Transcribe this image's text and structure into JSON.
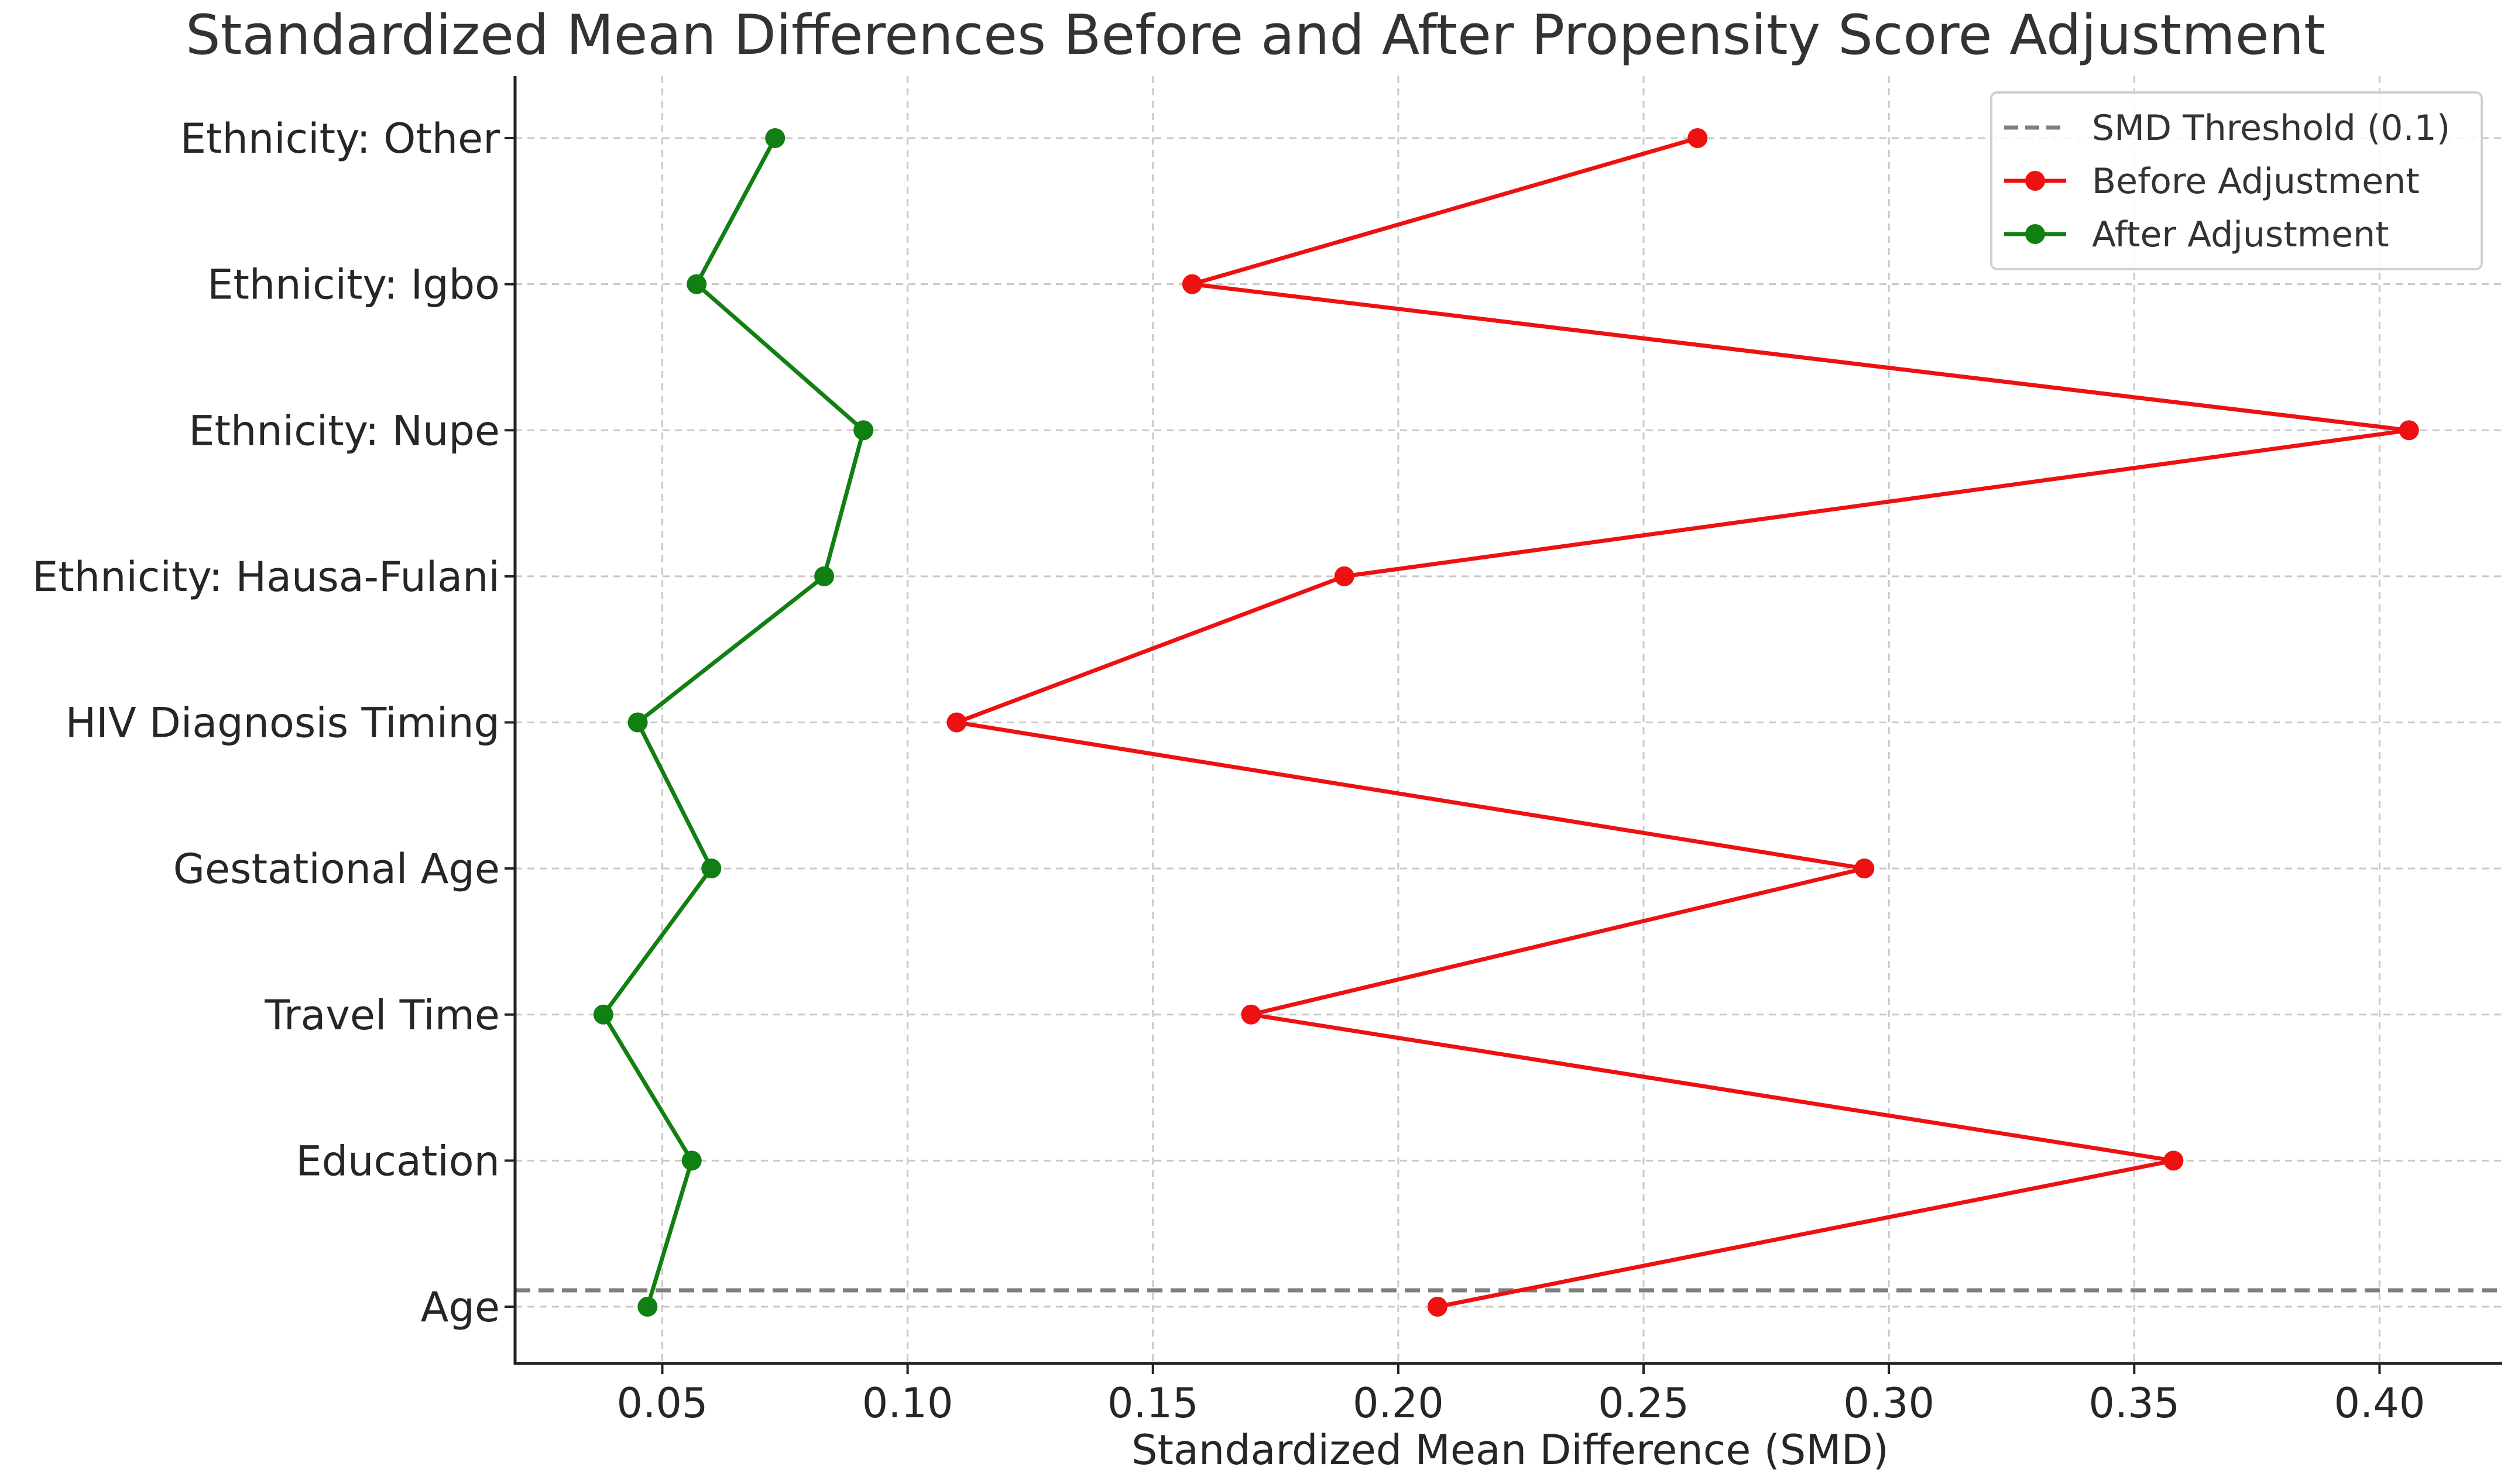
{
  "chart_data": {
    "type": "line",
    "title": "Standardized Mean Differences Before and After Propensity Score Adjustment",
    "xlabel": "Standardized Mean Difference (SMD)",
    "ylabel": "",
    "xlim": [
      0.02,
      0.425
    ],
    "xticks": [
      0.05,
      0.1,
      0.15,
      0.2,
      0.25,
      0.3,
      0.35,
      0.4
    ],
    "xtick_labels": [
      "0.05",
      "0.10",
      "0.15",
      "0.20",
      "0.25",
      "0.30",
      "0.35",
      "0.40"
    ],
    "categories": [
      "Age",
      "Education",
      "Travel Time",
      "Gestational Age",
      "HIV Diagnosis Timing",
      "Ethnicity: Hausa-Fulani",
      "Ethnicity: Nupe",
      "Ethnicity: Igbo",
      "Ethnicity: Other"
    ],
    "series": [
      {
        "name": "Before Adjustment",
        "color": "#ee1111",
        "values": [
          0.208,
          0.358,
          0.17,
          0.295,
          0.11,
          0.189,
          0.406,
          0.158,
          0.261
        ]
      },
      {
        "name": "After Adjustment",
        "color": "#117f11",
        "values": [
          0.047,
          0.056,
          0.038,
          0.06,
          0.045,
          0.083,
          0.091,
          0.057,
          0.073
        ]
      }
    ],
    "threshold": {
      "name": "SMD Threshold (0.1)",
      "value": 0.1,
      "color": "#7f7f7f"
    },
    "grid": true,
    "legend_position": "top-right"
  }
}
